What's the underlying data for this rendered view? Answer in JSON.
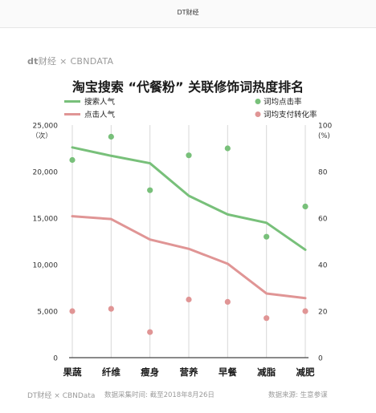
{
  "page": {
    "top_title": "DT财经"
  },
  "brand": {
    "dt": "dt",
    "text": "财经 × CBNDATA"
  },
  "headline": "淘宝搜索 “代餐粉” 关联修饰词热度排名",
  "footer": {
    "brand": "DT财经 × CBNData",
    "sampled": "数据采集时间: 截至2018年8月26日",
    "source": "数据来源: 生意参谋"
  },
  "colors": {
    "green": "#78c07a",
    "pink": "#e09595",
    "grid": "#d7d7d7",
    "axis": "#444444"
  },
  "chart_data": {
    "type": "line",
    "categories": [
      "果蔬",
      "纤维",
      "瘦身",
      "营养",
      "早餐",
      "减脂",
      "减肥"
    ],
    "left_axis": {
      "label_top": "25,000",
      "label_unit": "（次）",
      "range": [
        0,
        25000
      ],
      "ticks": [
        0,
        5000,
        10000,
        15000,
        20000,
        25000
      ],
      "tick_labels": [
        "0",
        "5,000",
        "10,000",
        "15,000",
        "20,000",
        "25,000"
      ]
    },
    "right_axis": {
      "label_top": "100",
      "label_unit": "(%)",
      "range": [
        0,
        100
      ],
      "ticks": [
        0,
        20,
        40,
        60,
        80,
        100
      ],
      "tick_labels": [
        "0",
        "20",
        "40",
        "60",
        "80",
        "100"
      ]
    },
    "series": [
      {
        "name": "搜索人气",
        "kind": "line",
        "axis": "left",
        "color": "#78c07a",
        "values": [
          22600,
          21700,
          20900,
          17400,
          15400,
          14500,
          11600
        ]
      },
      {
        "name": "点击人气",
        "kind": "line",
        "axis": "left",
        "color": "#e09595",
        "values": [
          15200,
          14900,
          12700,
          11700,
          10100,
          6900,
          6400
        ]
      },
      {
        "name": "词均点击率",
        "kind": "scatter",
        "axis": "right",
        "color": "#78c07a",
        "values": [
          85,
          95,
          72,
          87,
          90,
          52,
          65
        ]
      },
      {
        "name": "词均支付转化率",
        "kind": "scatter",
        "axis": "right",
        "color": "#e09595",
        "values": [
          20,
          21,
          11,
          25,
          24,
          17,
          20
        ]
      }
    ],
    "legend": [
      {
        "label": "搜索人气",
        "kind": "line",
        "color": "#78c07a"
      },
      {
        "label": "点击人气",
        "kind": "line",
        "color": "#e09595"
      },
      {
        "label": "词均点击率",
        "kind": "dot",
        "color": "#78c07a"
      },
      {
        "label": "词均支付转化率",
        "kind": "dot",
        "color": "#e09595"
      }
    ],
    "grid": "vertical"
  }
}
